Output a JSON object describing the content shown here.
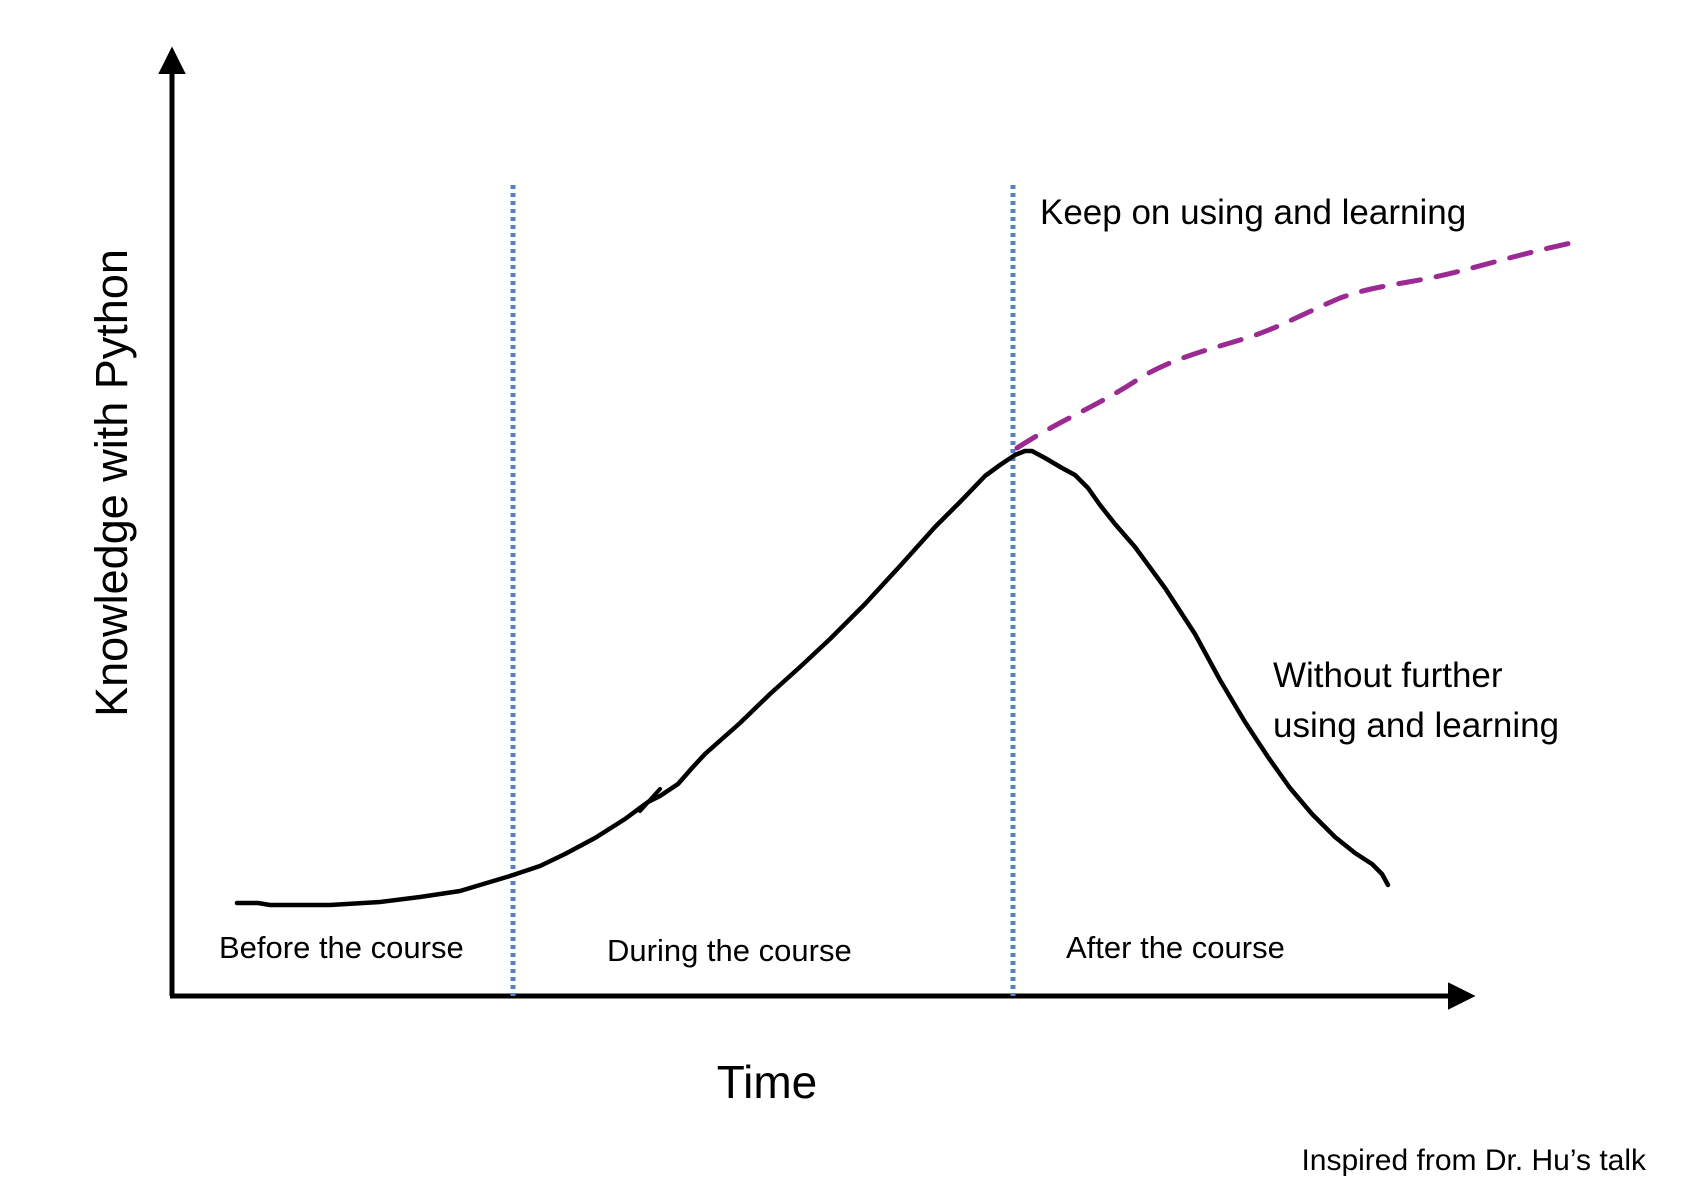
{
  "axes": {
    "y_label": "Knowledge with Python",
    "x_label": "Time"
  },
  "phases": [
    {
      "label": "Before the course"
    },
    {
      "label": "During the course"
    },
    {
      "label": "After the course"
    }
  ],
  "annotations": {
    "keep_learning": "Keep on using and learning",
    "without_further_line1": "Without further",
    "without_further_line2": "using and learning"
  },
  "credit": "Inspired from Dr. Hu’s talk",
  "colors": {
    "axis": "#000000",
    "main_curve": "#000000",
    "continued_curve": "#9b2a93",
    "phase_divider": "#5b7fc4"
  }
}
